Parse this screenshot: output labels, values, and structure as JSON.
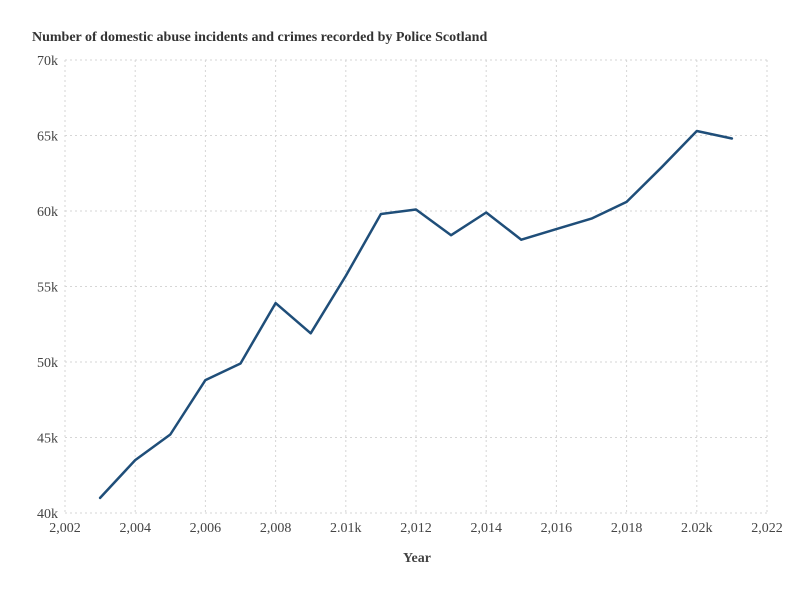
{
  "chart_data": {
    "type": "line",
    "title": "Number of domestic abuse incidents and crimes recorded by Police Scotland",
    "xlabel": "Year",
    "ylabel": "",
    "xlim": [
      2002,
      2022
    ],
    "ylim": [
      40000,
      70000
    ],
    "grid": true,
    "x_ticks": [
      2002,
      2004,
      2006,
      2008,
      2010,
      2012,
      2014,
      2016,
      2018,
      2020,
      2022
    ],
    "x_tick_labels": [
      "2,002",
      "2,004",
      "2,006",
      "2,008",
      "2.01k",
      "2,012",
      "2,014",
      "2,016",
      "2,018",
      "2.02k",
      "2,022"
    ],
    "y_ticks": [
      40000,
      45000,
      50000,
      55000,
      60000,
      65000,
      70000
    ],
    "y_tick_labels": [
      "40k",
      "45k",
      "50k",
      "55k",
      "60k",
      "65k",
      "70k"
    ],
    "x": [
      2003,
      2004,
      2005,
      2006,
      2007,
      2008,
      2009,
      2010,
      2011,
      2012,
      2013,
      2014,
      2015,
      2016,
      2017,
      2018,
      2019,
      2020,
      2021
    ],
    "series": [
      {
        "color": "#1f4e79",
        "values": [
          41000,
          43500,
          45200,
          48800,
          49900,
          53900,
          51900,
          55700,
          59800,
          60100,
          58400,
          59900,
          58100,
          58800,
          59500,
          60600,
          62900,
          65300,
          64800
        ]
      }
    ]
  }
}
